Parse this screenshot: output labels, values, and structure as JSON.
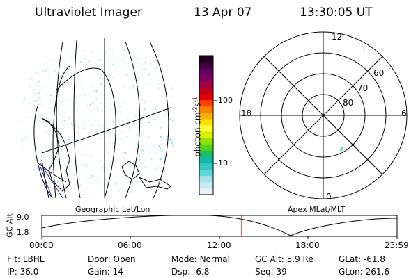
{
  "header": {
    "instrument": "Ultraviolet Imager",
    "date": "13 Apr 07",
    "time": "13:30:05 UT"
  },
  "colorbar": {
    "unit_label": "photon cm",
    "unit_sup1": "-2",
    "unit_s": "s",
    "unit_sup2": "-1",
    "ticks": [
      "100",
      "10"
    ],
    "colors": [
      "#e8f0f8",
      "#c8e8f0",
      "#a8e0e8",
      "#60d8d8",
      "#30c8c0",
      "#10b8a8",
      "#20c060",
      "#50d020",
      "#90e000",
      "#d8f000",
      "#ffff40",
      "#ffe000",
      "#ffb000",
      "#ff8000",
      "#ff4000",
      "#e80000",
      "#c00020",
      "#a00040",
      "#800060",
      "#600060",
      "#400040",
      "#200020"
    ]
  },
  "geo_panel": {
    "title": "Geographic Lat/Lon"
  },
  "polar_panel": {
    "title": "Apex MLat/MLT",
    "mlt_labels": {
      "top": "12",
      "left": "18",
      "right": "6",
      "bottom": "0"
    },
    "lat_labels": [
      "60",
      "70",
      "80"
    ]
  },
  "altitude_plot": {
    "ylabel": "GC Alt",
    "yticks": [
      "9.0",
      "1.8"
    ],
    "xticks": [
      "00:00",
      "06:00",
      "12:00",
      "18:00",
      "23:59"
    ],
    "current_time_hours": 13.5,
    "marker_color": "#ff0000"
  },
  "status": {
    "flt_label": "Flt:",
    "flt_value": "LBHL",
    "door_label": "Door:",
    "door_value": "Open",
    "mode_label": "Mode:",
    "mode_value": "Normal",
    "gcalt_label": "GC Alt:",
    "gcalt_value": "5.9 Re",
    "glat_label": "GLat:",
    "glat_value": "-61.8",
    "ip_label": "IP:",
    "ip_value": "36.0",
    "gain_label": "Gain:",
    "gain_value": "14",
    "dsp_label": "Dsp:",
    "dsp_value": "-6.8",
    "seq_label": "Seq:",
    "seq_value": "39",
    "glon_label": "GLon:",
    "glon_value": "261.6"
  }
}
